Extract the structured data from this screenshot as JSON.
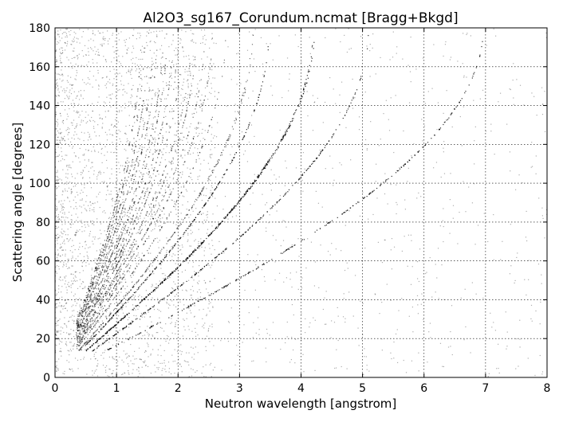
{
  "chart_data": {
    "type": "scatter",
    "title": "Al2O3_sg167_Corundum.ncmat [Bragg+Bkgd]",
    "xlabel": "Neutron wavelength [angstrom]",
    "ylabel": "Scattering angle [degrees]",
    "xlim": [
      0,
      8
    ],
    "ylim": [
      0,
      180
    ],
    "xticks": [
      0,
      1,
      2,
      3,
      4,
      5,
      6,
      7,
      8
    ],
    "yticks": [
      0,
      20,
      40,
      60,
      80,
      100,
      120,
      140,
      160,
      180
    ],
    "grid": true,
    "legend": "none",
    "point_color": "#000000",
    "bragg_cutoff_wavelengths": [
      6.96,
      5.1,
      4.22,
      4.2,
      3.48,
      3.22,
      3.2,
      2.78,
      2.56,
      2.44,
      2.3,
      2.22,
      2.08,
      2.0,
      1.92,
      1.82,
      1.76,
      1.66,
      1.6,
      1.52,
      1.46,
      1.4
    ],
    "background": {
      "x_range": [
        0,
        8
      ],
      "y_range": [
        0,
        180
      ],
      "density": "high at short wavelength, sparse beyond 2.5"
    }
  }
}
